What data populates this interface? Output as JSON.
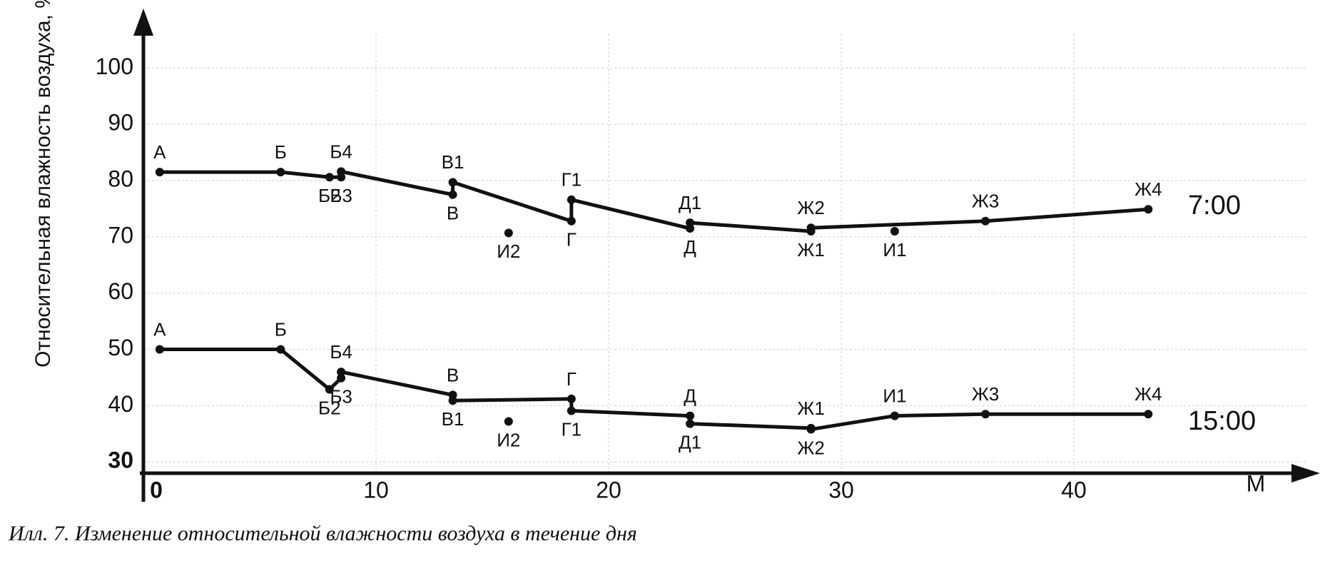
{
  "chart_data": {
    "type": "line",
    "title": "Илл. 7. Изменение относительной влажности воздуха в течение дня",
    "y_label": "Относительная влажность воздуха, %",
    "x_label": "М",
    "xlim": [
      0,
      50
    ],
    "xticks": [
      0,
      10,
      20,
      30,
      40
    ],
    "ylim": [
      28,
      106
    ],
    "yticks": [
      30,
      40,
      50,
      60,
      70,
      80,
      90,
      100
    ],
    "grid": true,
    "color": "#111111",
    "series": [
      {
        "name": "7:00",
        "points": [
          "А",
          "Б",
          "Б2",
          "Б3",
          "Б4",
          "В",
          "В1",
          "Г",
          "Г1",
          "Д",
          "Д1",
          "Ж1",
          "Ж2",
          "Ж3",
          "Ж4"
        ],
        "x": [
          0.7,
          5.9,
          8.0,
          8.5,
          8.5,
          13.3,
          13.3,
          18.4,
          18.4,
          23.5,
          23.5,
          28.7,
          28.7,
          36.2,
          43.2
        ],
        "values": [
          81.5,
          81.5,
          80.6,
          80.6,
          81.6,
          77.5,
          79.7,
          72.8,
          76.6,
          71.5,
          72.5,
          71.0,
          71.6,
          72.8,
          74.9
        ],
        "isolated_points": [
          "И2",
          "И1"
        ],
        "isolated_x": [
          15.7,
          32.3
        ],
        "isolated_values": [
          70.7,
          71.0
        ]
      },
      {
        "name": "15:00",
        "points": [
          "А",
          "Б",
          "Б2",
          "Б3",
          "Б4",
          "В",
          "В1",
          "Г",
          "Г1",
          "Д",
          "Д1",
          "Ж1",
          "Ж2",
          "И1",
          "Ж3",
          "Ж4"
        ],
        "x": [
          0.7,
          5.9,
          8.0,
          8.5,
          8.5,
          13.3,
          13.3,
          18.4,
          18.4,
          23.5,
          23.5,
          28.7,
          28.7,
          32.3,
          36.2,
          43.2
        ],
        "values": [
          50.0,
          50.0,
          42.9,
          44.9,
          46.0,
          41.9,
          40.9,
          41.2,
          39.1,
          38.2,
          36.8,
          36.0,
          35.8,
          38.2,
          38.5,
          38.5
        ],
        "isolated_points": [
          "И2"
        ],
        "isolated_x": [
          15.7
        ],
        "isolated_values": [
          37.2
        ]
      }
    ]
  }
}
